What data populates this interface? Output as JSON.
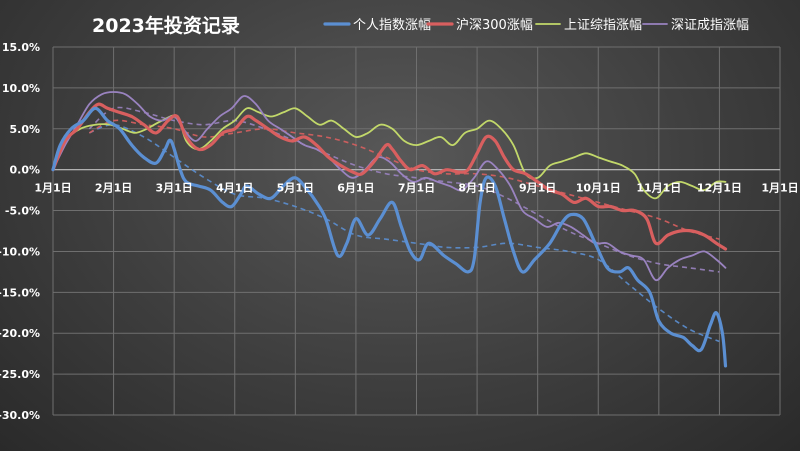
{
  "chart_data": {
    "type": "line",
    "title": "2023年投资记录",
    "x_tick_labels": [
      "1月1日",
      "2月1日",
      "3月1日",
      "4月1日",
      "5月1日",
      "6月1日",
      "7月1日",
      "8月1日",
      "9月1日",
      "10月1日",
      "11月1日",
      "12月1日",
      "1月1日"
    ],
    "y_tick_labels": [
      "15.0%",
      "10.0%",
      "5.0%",
      "0.0%",
      "-5.0%",
      "-10.0%",
      "-15.0%",
      "-20.0%",
      "-25.0%",
      "-30.0%"
    ],
    "ylim": [
      -30,
      15
    ],
    "y_unit": "%",
    "grid": true,
    "legend_position": "top-right",
    "series": [
      {
        "name": "个人指数涨幅",
        "color": "#5b8fd2",
        "width": 3.2,
        "points": [
          [
            0,
            0
          ],
          [
            0.12,
            3
          ],
          [
            0.3,
            5
          ],
          [
            0.5,
            6
          ],
          [
            0.7,
            7.5
          ],
          [
            0.9,
            6
          ],
          [
            1.1,
            5
          ],
          [
            1.3,
            3
          ],
          [
            1.5,
            1.5
          ],
          [
            1.7,
            0.8
          ],
          [
            1.85,
            2.5
          ],
          [
            1.95,
            3.5
          ],
          [
            2.1,
            0
          ],
          [
            2.2,
            -1.5
          ],
          [
            2.4,
            -2
          ],
          [
            2.6,
            -2.5
          ],
          [
            2.8,
            -4
          ],
          [
            2.95,
            -4.5
          ],
          [
            3.1,
            -3
          ],
          [
            3.2,
            -2
          ],
          [
            3.4,
            -3
          ],
          [
            3.6,
            -3.5
          ],
          [
            3.8,
            -2
          ],
          [
            4.0,
            -1
          ],
          [
            4.2,
            -2.5
          ],
          [
            4.35,
            -4
          ],
          [
            4.5,
            -6
          ],
          [
            4.7,
            -10.5
          ],
          [
            4.85,
            -9
          ],
          [
            5.0,
            -6
          ],
          [
            5.2,
            -8
          ],
          [
            5.4,
            -6
          ],
          [
            5.6,
            -4
          ],
          [
            5.75,
            -7
          ],
          [
            5.9,
            -10
          ],
          [
            6.05,
            -11
          ],
          [
            6.2,
            -9
          ],
          [
            6.45,
            -10.5
          ],
          [
            6.65,
            -11.5
          ],
          [
            6.85,
            -12.5
          ],
          [
            6.95,
            -11
          ],
          [
            7.05,
            -4
          ],
          [
            7.15,
            -1
          ],
          [
            7.3,
            -2
          ],
          [
            7.45,
            -6
          ],
          [
            7.6,
            -10
          ],
          [
            7.75,
            -12.5
          ],
          [
            7.95,
            -11
          ],
          [
            8.2,
            -9
          ],
          [
            8.4,
            -6.5
          ],
          [
            8.55,
            -5.5
          ],
          [
            8.75,
            -6
          ],
          [
            8.95,
            -9
          ],
          [
            9.15,
            -12
          ],
          [
            9.35,
            -12.5
          ],
          [
            9.5,
            -12
          ],
          [
            9.65,
            -13.5
          ],
          [
            9.85,
            -15
          ],
          [
            10.0,
            -18.5
          ],
          [
            10.2,
            -20
          ],
          [
            10.4,
            -20.5
          ],
          [
            10.55,
            -21.5
          ],
          [
            10.7,
            -22
          ],
          [
            10.85,
            -19
          ],
          [
            10.95,
            -17.5
          ],
          [
            11.05,
            -20
          ],
          [
            11.1,
            -24
          ]
        ]
      },
      {
        "name": "沪深300涨幅",
        "color": "#d85f5f",
        "width": 3.2,
        "points": [
          [
            0,
            0
          ],
          [
            0.2,
            3.5
          ],
          [
            0.4,
            5
          ],
          [
            0.6,
            7
          ],
          [
            0.75,
            8
          ],
          [
            0.9,
            7.5
          ],
          [
            1.1,
            7
          ],
          [
            1.3,
            6.5
          ],
          [
            1.5,
            5.5
          ],
          [
            1.7,
            4.5
          ],
          [
            1.9,
            6
          ],
          [
            2.05,
            6.5
          ],
          [
            2.2,
            4
          ],
          [
            2.4,
            2.5
          ],
          [
            2.6,
            3
          ],
          [
            2.8,
            4.5
          ],
          [
            3.0,
            5
          ],
          [
            3.2,
            6.5
          ],
          [
            3.35,
            6
          ],
          [
            3.55,
            5
          ],
          [
            3.75,
            4
          ],
          [
            3.95,
            3.5
          ],
          [
            4.15,
            4
          ],
          [
            4.35,
            3
          ],
          [
            4.55,
            1.5
          ],
          [
            4.75,
            0.5
          ],
          [
            4.95,
            -0.3
          ],
          [
            5.1,
            -0.5
          ],
          [
            5.3,
            1
          ],
          [
            5.5,
            3
          ],
          [
            5.6,
            2.5
          ],
          [
            5.75,
            1
          ],
          [
            5.9,
            0
          ],
          [
            6.1,
            0.5
          ],
          [
            6.3,
            -0.5
          ],
          [
            6.5,
            0
          ],
          [
            6.7,
            -0.3
          ],
          [
            6.85,
            0
          ],
          [
            7.0,
            2
          ],
          [
            7.15,
            4
          ],
          [
            7.3,
            3.5
          ],
          [
            7.45,
            1.5
          ],
          [
            7.6,
            0
          ],
          [
            7.8,
            -0.5
          ],
          [
            8.0,
            -1.5
          ],
          [
            8.2,
            -2.5
          ],
          [
            8.4,
            -3
          ],
          [
            8.6,
            -4
          ],
          [
            8.8,
            -3.5
          ],
          [
            9.0,
            -4.5
          ],
          [
            9.2,
            -4.5
          ],
          [
            9.4,
            -5
          ],
          [
            9.6,
            -5
          ],
          [
            9.8,
            -6
          ],
          [
            9.95,
            -9
          ],
          [
            10.15,
            -8
          ],
          [
            10.35,
            -7.5
          ],
          [
            10.55,
            -7.5
          ],
          [
            10.75,
            -8
          ],
          [
            10.95,
            -9
          ],
          [
            11.1,
            -9.7
          ]
        ]
      },
      {
        "name": "上证综指涨幅",
        "color": "#c2d86a",
        "width": 1.8,
        "points": [
          [
            0,
            0
          ],
          [
            0.2,
            3.5
          ],
          [
            0.45,
            5
          ],
          [
            0.7,
            5.5
          ],
          [
            0.95,
            5.5
          ],
          [
            1.15,
            5
          ],
          [
            1.35,
            4.5
          ],
          [
            1.55,
            5
          ],
          [
            1.8,
            6
          ],
          [
            2.05,
            6.5
          ],
          [
            2.2,
            3.5
          ],
          [
            2.4,
            2.5
          ],
          [
            2.6,
            3.5
          ],
          [
            2.8,
            5
          ],
          [
            3.0,
            6
          ],
          [
            3.2,
            7.5
          ],
          [
            3.4,
            7
          ],
          [
            3.6,
            6.5
          ],
          [
            3.8,
            7
          ],
          [
            4.0,
            7.5
          ],
          [
            4.2,
            6.5
          ],
          [
            4.4,
            5.5
          ],
          [
            4.6,
            6
          ],
          [
            4.8,
            5
          ],
          [
            5.0,
            4
          ],
          [
            5.2,
            4.5
          ],
          [
            5.4,
            5.5
          ],
          [
            5.6,
            5
          ],
          [
            5.8,
            3.5
          ],
          [
            6.0,
            3
          ],
          [
            6.2,
            3.5
          ],
          [
            6.4,
            4
          ],
          [
            6.6,
            3
          ],
          [
            6.8,
            4.5
          ],
          [
            7.0,
            5
          ],
          [
            7.2,
            6
          ],
          [
            7.4,
            5
          ],
          [
            7.6,
            3
          ],
          [
            7.8,
            -0.5
          ],
          [
            8.0,
            -1
          ],
          [
            8.2,
            0.5
          ],
          [
            8.4,
            1
          ],
          [
            8.6,
            1.5
          ],
          [
            8.8,
            2
          ],
          [
            9.0,
            1.5
          ],
          [
            9.2,
            1
          ],
          [
            9.4,
            0.5
          ],
          [
            9.6,
            -0.5
          ],
          [
            9.75,
            -2.5
          ],
          [
            9.95,
            -3.5
          ],
          [
            10.15,
            -2
          ],
          [
            10.35,
            -1.5
          ],
          [
            10.55,
            -2
          ],
          [
            10.75,
            -2.5
          ],
          [
            10.95,
            -1.5
          ],
          [
            11.1,
            -1.5
          ]
        ]
      },
      {
        "name": "深证成指涨幅",
        "color": "#9a83c0",
        "width": 1.8,
        "points": [
          [
            0,
            0
          ],
          [
            0.2,
            3
          ],
          [
            0.4,
            5.5
          ],
          [
            0.6,
            8
          ],
          [
            0.8,
            9.2
          ],
          [
            1.0,
            9.5
          ],
          [
            1.2,
            9.2
          ],
          [
            1.4,
            8
          ],
          [
            1.6,
            6.5
          ],
          [
            1.8,
            6
          ],
          [
            2.0,
            6.5
          ],
          [
            2.15,
            5
          ],
          [
            2.35,
            3.5
          ],
          [
            2.55,
            5
          ],
          [
            2.75,
            6.5
          ],
          [
            2.95,
            7.5
          ],
          [
            3.15,
            9
          ],
          [
            3.35,
            8
          ],
          [
            3.55,
            6
          ],
          [
            3.75,
            5
          ],
          [
            3.95,
            4
          ],
          [
            4.15,
            3
          ],
          [
            4.35,
            2.5
          ],
          [
            4.55,
            1.5
          ],
          [
            4.75,
            0
          ],
          [
            4.95,
            -1
          ],
          [
            5.15,
            0
          ],
          [
            5.35,
            1.5
          ],
          [
            5.55,
            1
          ],
          [
            5.75,
            -0.5
          ],
          [
            5.95,
            -1.5
          ],
          [
            6.15,
            -1
          ],
          [
            6.35,
            -1.5
          ],
          [
            6.55,
            -2
          ],
          [
            6.75,
            -2.5
          ],
          [
            6.95,
            -1
          ],
          [
            7.15,
            1
          ],
          [
            7.35,
            0
          ],
          [
            7.55,
            -2
          ],
          [
            7.75,
            -5
          ],
          [
            7.95,
            -6
          ],
          [
            8.15,
            -7
          ],
          [
            8.35,
            -6.5
          ],
          [
            8.55,
            -7
          ],
          [
            8.75,
            -8
          ],
          [
            8.95,
            -9
          ],
          [
            9.15,
            -9
          ],
          [
            9.35,
            -10
          ],
          [
            9.55,
            -10.5
          ],
          [
            9.75,
            -11
          ],
          [
            9.95,
            -13.5
          ],
          [
            10.15,
            -12
          ],
          [
            10.35,
            -11
          ],
          [
            10.55,
            -10.5
          ],
          [
            10.75,
            -10
          ],
          [
            10.95,
            -11
          ],
          [
            11.1,
            -12
          ]
        ]
      }
    ],
    "trendlines": [
      {
        "color": "#5b8fd2",
        "points": [
          [
            0.6,
            4.5
          ],
          [
            1,
            5.5
          ],
          [
            1.5,
            4
          ],
          [
            2,
            1.5
          ],
          [
            2.5,
            -1
          ],
          [
            3,
            -3
          ],
          [
            3.5,
            -3.5
          ],
          [
            4,
            -4.5
          ],
          [
            4.5,
            -6
          ],
          [
            5,
            -8
          ],
          [
            5.5,
            -8.5
          ],
          [
            6,
            -9
          ],
          [
            6.5,
            -9.5
          ],
          [
            7,
            -9.5
          ],
          [
            7.5,
            -9
          ],
          [
            8,
            -9.5
          ],
          [
            8.5,
            -10
          ],
          [
            9,
            -11
          ],
          [
            9.5,
            -14
          ],
          [
            10,
            -17
          ],
          [
            10.5,
            -19.5
          ],
          [
            11,
            -21
          ]
        ]
      },
      {
        "color": "#d85f5f",
        "points": [
          [
            0.6,
            4.5
          ],
          [
            1,
            6
          ],
          [
            1.5,
            5.5
          ],
          [
            2,
            5
          ],
          [
            2.5,
            4
          ],
          [
            3,
            4.5
          ],
          [
            3.5,
            5
          ],
          [
            4,
            4.5
          ],
          [
            4.5,
            4
          ],
          [
            5,
            3
          ],
          [
            5.5,
            1.5
          ],
          [
            6,
            0
          ],
          [
            6.5,
            -0.5
          ],
          [
            7,
            -0.5
          ],
          [
            7.5,
            -1
          ],
          [
            8,
            -2
          ],
          [
            8.5,
            -3
          ],
          [
            9,
            -4
          ],
          [
            9.5,
            -5
          ],
          [
            10,
            -6
          ],
          [
            10.5,
            -7.5
          ],
          [
            11,
            -8.5
          ]
        ]
      },
      {
        "color": "#9a83c0",
        "points": [
          [
            0.6,
            5
          ],
          [
            1,
            7.5
          ],
          [
            1.5,
            7
          ],
          [
            2,
            6
          ],
          [
            2.5,
            5.5
          ],
          [
            3,
            6
          ],
          [
            3.5,
            5
          ],
          [
            4,
            3.5
          ],
          [
            4.5,
            2
          ],
          [
            5,
            0.5
          ],
          [
            5.5,
            -0.5
          ],
          [
            6,
            -1
          ],
          [
            6.5,
            -1.5
          ],
          [
            7,
            -2
          ],
          [
            7.5,
            -3.5
          ],
          [
            8,
            -5.5
          ],
          [
            8.5,
            -7.5
          ],
          [
            9,
            -9
          ],
          [
            9.5,
            -10.5
          ],
          [
            10,
            -11.5
          ],
          [
            10.5,
            -12
          ],
          [
            11,
            -12.5
          ]
        ]
      }
    ]
  }
}
